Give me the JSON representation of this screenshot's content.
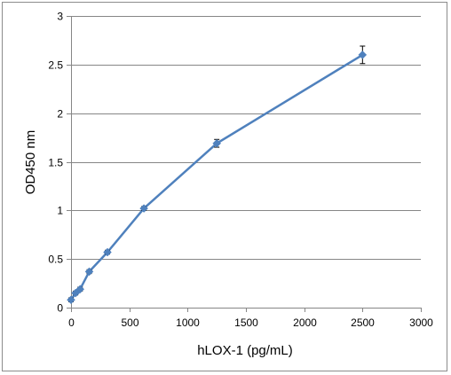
{
  "chart_data": {
    "type": "line",
    "title": "",
    "xlabel": "hLOX-1 (pg/mL)",
    "ylabel": "OD450 nm",
    "xlim": [
      0,
      3000
    ],
    "ylim": [
      0,
      3
    ],
    "x_ticks": [
      0,
      500,
      1000,
      1500,
      2000,
      2500,
      3000
    ],
    "y_ticks": [
      0,
      0.5,
      1,
      1.5,
      2,
      2.5,
      3
    ],
    "x_tick_labels": [
      "0",
      "500",
      "1000",
      "1500",
      "2000",
      "2500",
      "3000"
    ],
    "y_tick_labels": [
      "0",
      "0.5",
      "1",
      "1.5",
      "2",
      "2.5",
      "3"
    ],
    "grid": "horizontal",
    "legend": "none",
    "series": [
      {
        "color": "#4f81bd",
        "marker": "diamond",
        "x": [
          0,
          39,
          78,
          156,
          312,
          625,
          1250,
          2500
        ],
        "y": [
          0.08,
          0.15,
          0.19,
          0.37,
          0.57,
          1.02,
          1.69,
          2.6
        ],
        "error": [
          0.02,
          0.02,
          0.02,
          0.02,
          0.02,
          0.02,
          0.04,
          0.09
        ]
      }
    ]
  }
}
